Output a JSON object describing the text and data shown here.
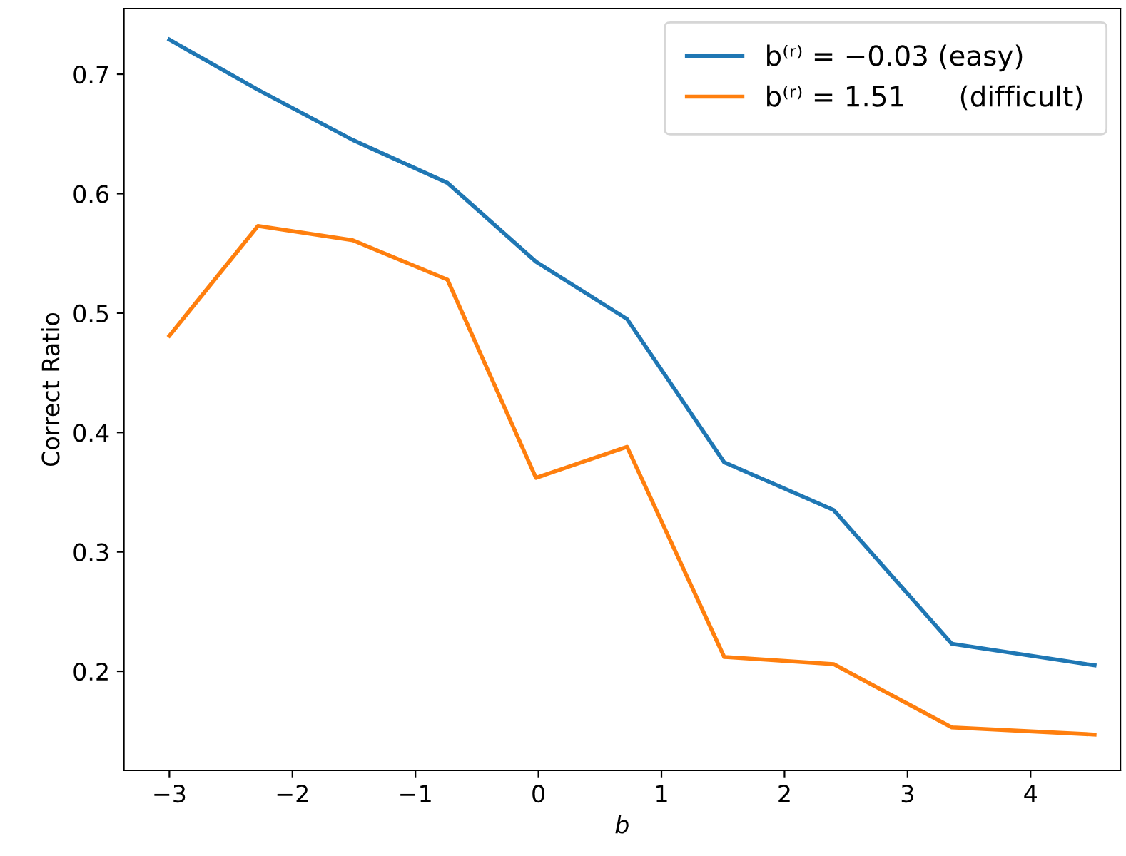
{
  "chart_data": {
    "type": "line",
    "xlabel": "b",
    "ylabel": "Correct Ratio",
    "x": [
      -3,
      -2.28,
      -1.51,
      -0.74,
      -0.02,
      0.72,
      1.51,
      2.4,
      3.36,
      4.52
    ],
    "series": [
      {
        "name": "b⁽ʳ⁾ = −0.03 (easy)",
        "color": "#1f77b4",
        "values": [
          0.729,
          0.687,
          0.645,
          0.609,
          0.543,
          0.495,
          0.375,
          0.335,
          0.223,
          0.205
        ]
      },
      {
        "name": "b⁽ʳ⁾ = 1.51      (difficult)",
        "color": "#ff7f0e",
        "values": [
          0.481,
          0.573,
          0.561,
          0.528,
          0.362,
          0.388,
          0.212,
          0.206,
          0.153,
          0.147
        ]
      }
    ],
    "xlim": [
      -3.37,
      4.73
    ],
    "ylim": [
      0.117,
      0.755
    ],
    "xticks": [
      -3,
      -2,
      -1,
      0,
      1,
      2,
      3,
      4
    ],
    "yticks": [
      0.2,
      0.3,
      0.4,
      0.5,
      0.6,
      0.7
    ],
    "grid": false,
    "legend": "top right",
    "marker": "none",
    "line_style": "solid"
  }
}
